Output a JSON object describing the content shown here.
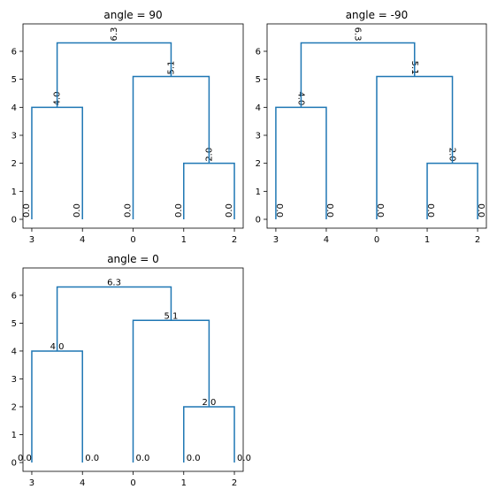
{
  "figure": {
    "link_color": "#1f77b4",
    "panels": [
      {
        "title": "angle = 90",
        "angle": 90
      },
      {
        "title": "angle = -90",
        "angle": -90
      },
      {
        "title": "angle = 0",
        "angle": 0
      }
    ]
  },
  "chart_data": [
    {
      "type": "dendrogram",
      "title": "angle = 90",
      "label_rotation": 90,
      "leaf_order": [
        "3",
        "4",
        "0",
        "1",
        "2"
      ],
      "y_ticks": [
        "0",
        "1",
        "2",
        "3",
        "4",
        "5",
        "6"
      ],
      "ylim": [
        0,
        6.6
      ],
      "merges": [
        {
          "left": "3",
          "right": "4",
          "height": 4.0,
          "label": "4.0"
        },
        {
          "left": "1",
          "right": "2",
          "height": 2.0,
          "label": "2.0"
        },
        {
          "left": "0",
          "right": "(1,2)",
          "height": 5.1,
          "label": "5.1"
        },
        {
          "left": "(3,4)",
          "right": "(0,(1,2))",
          "height": 6.3,
          "label": "6.3"
        }
      ],
      "leaf_height_labels": [
        "0.0",
        "0.0",
        "0.0",
        "0.0",
        "0.0"
      ]
    },
    {
      "type": "dendrogram",
      "title": "angle = -90",
      "label_rotation": -90,
      "leaf_order": [
        "3",
        "4",
        "0",
        "1",
        "2"
      ],
      "y_ticks": [
        "0",
        "1",
        "2",
        "3",
        "4",
        "5",
        "6"
      ],
      "ylim": [
        0,
        6.6
      ],
      "merges": [
        {
          "left": "3",
          "right": "4",
          "height": 4.0,
          "label": "4.0"
        },
        {
          "left": "1",
          "right": "2",
          "height": 2.0,
          "label": "2.0"
        },
        {
          "left": "0",
          "right": "(1,2)",
          "height": 5.1,
          "label": "5.1"
        },
        {
          "left": "(3,4)",
          "right": "(0,(1,2))",
          "height": 6.3,
          "label": "6.3"
        }
      ],
      "leaf_height_labels": [
        "0.0",
        "0.0",
        "0.0",
        "0.0",
        "0.0"
      ]
    },
    {
      "type": "dendrogram",
      "title": "angle = 0",
      "label_rotation": 0,
      "leaf_order": [
        "3",
        "4",
        "0",
        "1",
        "2"
      ],
      "y_ticks": [
        "0",
        "1",
        "2",
        "3",
        "4",
        "5",
        "6"
      ],
      "ylim": [
        0,
        6.6
      ],
      "merges": [
        {
          "left": "3",
          "right": "4",
          "height": 4.0,
          "label": "4.0"
        },
        {
          "left": "1",
          "right": "2",
          "height": 2.0,
          "label": "2.0"
        },
        {
          "left": "0",
          "right": "(1,2)",
          "height": 5.1,
          "label": "5.1"
        },
        {
          "left": "(3,4)",
          "right": "(0,(1,2))",
          "height": 6.3,
          "label": "6.3"
        }
      ],
      "leaf_height_labels": [
        "0.0",
        "0.0",
        "0.0",
        "0.0",
        "0.0"
      ]
    }
  ]
}
